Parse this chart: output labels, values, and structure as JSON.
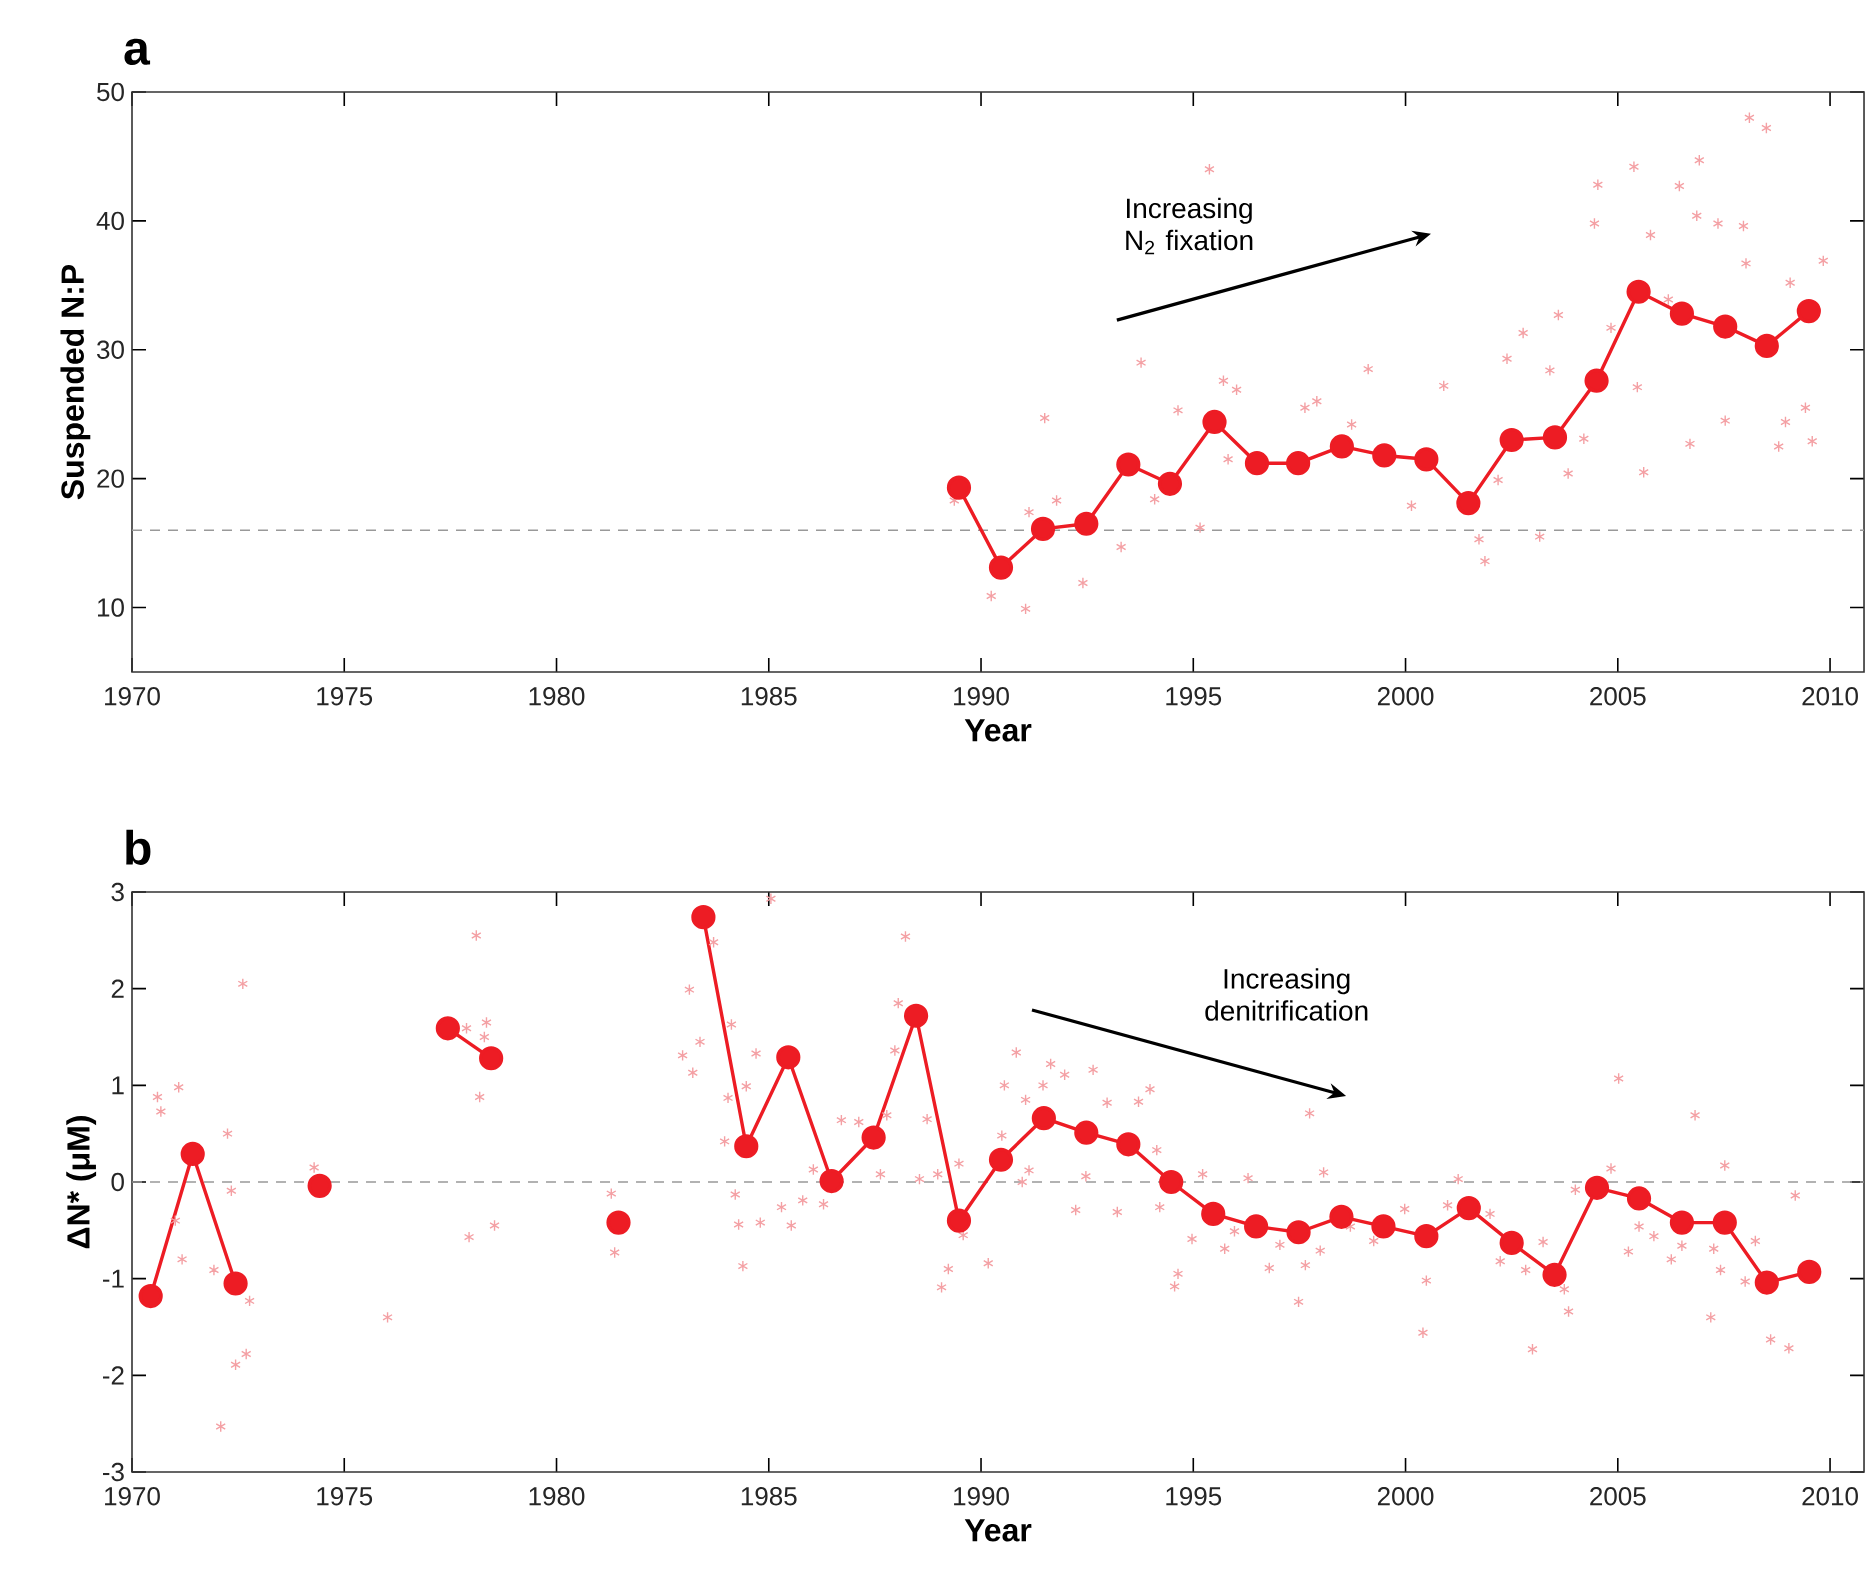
{
  "chart_data": [
    {
      "type": "line",
      "title": "a",
      "xlabel": "Year",
      "ylabel": "Suspended N:P",
      "xlim": [
        1970,
        2010.8
      ],
      "ylim": [
        5,
        50
      ],
      "xticks": [
        1970,
        1975,
        1980,
        1985,
        1990,
        1995,
        2000,
        2005,
        2010
      ],
      "yticks": [
        10,
        20,
        30,
        40,
        50
      ],
      "ref_lines": [
        {
          "axis": "y",
          "value": 16,
          "color": "#999999",
          "line_style": "dashed"
        }
      ],
      "annotations": [
        "Increasing N$_{2}$ fixation"
      ],
      "series": [
        {
          "type": "scatter",
          "color": "#f4a0a4",
          "marker": "cross",
          "x": [
            1995.38,
            1993.77,
            1991.5,
            1990.24,
            1991.05,
            1992.4,
            1993.3,
            1989.37,
            1991.13,
            1991.78,
            1994.09,
            1994.64,
            1995.16,
            1995.71,
            1996.02,
            1995.82,
            1997.63,
            1997.91,
            1999.12,
            1998.73,
            2000.14,
            2000.9,
            2001.87,
            2001.73,
            2002.18,
            2002.39,
            2002.77,
            2003.16,
            2003.6,
            2003.4,
            2003.83,
            2004.2,
            2004.45,
            2004.53,
            2004.84,
            2005.38,
            2005.46,
            2005.61,
            2005.77,
            2006.45,
            2006.92,
            2006.7,
            2006.86,
            2007.36,
            2007.53,
            2008.1,
            2008.5,
            2007.96,
            2008.79,
            2009.06,
            2008.95,
            2009.58,
            2009.84,
            2009.42,
            2006.19,
            2008.02
          ],
          "values": [
            44.0,
            29.0,
            24.7,
            10.9,
            9.9,
            11.9,
            14.7,
            18.3,
            17.4,
            18.3,
            18.4,
            25.3,
            16.2,
            27.6,
            26.9,
            21.5,
            25.5,
            26.0,
            28.5,
            24.2,
            17.9,
            27.2,
            13.6,
            15.3,
            19.9,
            29.3,
            31.3,
            15.5,
            32.7,
            28.4,
            20.4,
            23.1,
            39.8,
            42.8,
            31.7,
            44.2,
            27.1,
            20.5,
            38.9,
            42.7,
            44.7,
            22.7,
            40.4,
            39.8,
            24.5,
            48.0,
            47.2,
            39.6,
            22.5,
            35.2,
            24.4,
            22.9,
            36.9,
            25.5,
            33.9,
            36.7
          ]
        },
        {
          "color": "#ed1c24",
          "marker": "circle",
          "x": [
            1989.48,
            1990.47,
            1991.46,
            1992.48,
            1993.47,
            1994.45,
            1995.5,
            1996.5,
            1997.47,
            1998.5,
            1999.5,
            2000.49,
            2001.48,
            2002.5,
            2003.52,
            2004.5,
            2005.49,
            2006.51,
            2007.53,
            2008.51,
            2009.5
          ],
          "values": [
            19.3,
            13.1,
            16.1,
            16.5,
            21.1,
            19.6,
            24.4,
            21.2,
            21.2,
            22.5,
            21.8,
            21.5,
            18.1,
            23.0,
            23.2,
            27.6,
            34.5,
            32.8,
            31.8,
            30.3,
            33.0
          ]
        }
      ]
    },
    {
      "type": "line",
      "title": "b",
      "xlabel": "Year",
      "ylabel": "ΔN* (μM)",
      "xlim": [
        1970,
        2010.8
      ],
      "ylim": [
        -3,
        3
      ],
      "xticks": [
        1970,
        1975,
        1980,
        1985,
        1990,
        1995,
        2000,
        2005,
        2010
      ],
      "yticks": [
        -3,
        -2,
        -1,
        0,
        1,
        2,
        3
      ],
      "ref_lines": [
        {
          "axis": "y",
          "value": 0,
          "color": "#999999",
          "line_style": "dashed"
        }
      ],
      "annotations": [
        "Increasing denitrification"
      ],
      "series": [
        {
          "type": "scatter",
          "color": "#f4a0a4",
          "marker": "cross",
          "x": [
            1970.6,
            1970.68,
            1971.1,
            1971.18,
            1971.02,
            1972.09,
            1972.44,
            1972.69,
            1972.61,
            1972.25,
            1972.34,
            1971.93,
            1972.77,
            1974.29,
            1976.02,
            1978.11,
            1977.88,
            1978.35,
            1978.3,
            1978.19,
            1977.94,
            1978.54,
            1981.29,
            1981.37,
            1985.05,
            1983.13,
            1983.7,
            1983.38,
            1982.97,
            1983.21,
            1984.12,
            1984.04,
            1983.96,
            1984.47,
            1984.7,
            1984.21,
            1984.29,
            1984.39,
            1984.8,
            1985.3,
            1985.53,
            1985.8,
            1986.05,
            1986.29,
            1986.71,
            1987.12,
            1987.63,
            1987.78,
            1987.97,
            1988.05,
            1988.22,
            1988.73,
            1988.55,
            1988.98,
            1989.48,
            1989.58,
            1989.07,
            1989.23,
            1990.17,
            1990.49,
            1990.55,
            1990.83,
            1991.05,
            1990.97,
            1991.13,
            1991.64,
            1991.97,
            1992.64,
            1991.46,
            1992.23,
            1992.47,
            1992.97,
            1993.21,
            1993.71,
            1993.98,
            1994.14,
            1994.21,
            1994.56,
            1994.64,
            1994.97,
            1995.22,
            1995.74,
            1995.97,
            1996.29,
            1996.79,
            1997.04,
            1997.48,
            1997.64,
            1997.74,
            1998.07,
            1997.99,
            1998.7,
            1999.25,
            1999.98,
            2000.41,
            2000.49,
            2001.24,
            2000.99,
            2001.99,
            2002.23,
            2002.83,
            2002.99,
            2003.24,
            2003.74,
            2003.84,
            2004.0,
            2004.84,
            2005.02,
            2005.25,
            2005.5,
            2005.85,
            2006.26,
            2006.51,
            2006.82,
            2007.19,
            2007.26,
            2007.52,
            2007.42,
            2008.0,
            2008.24,
            2008.6,
            2009.03,
            2009.18
          ],
          "values": [
            0.88,
            0.73,
            0.98,
            -0.8,
            -0.4,
            -2.53,
            -1.89,
            -1.78,
            2.05,
            0.5,
            -0.09,
            -0.91,
            -1.23,
            0.15,
            -1.4,
            2.55,
            1.59,
            1.65,
            1.5,
            0.88,
            -0.57,
            -0.45,
            -0.12,
            -0.73,
            2.93,
            1.99,
            2.48,
            1.45,
            1.31,
            1.13,
            1.63,
            0.87,
            0.42,
            0.99,
            1.33,
            -0.13,
            -0.44,
            -0.87,
            -0.42,
            -0.26,
            -0.45,
            -0.19,
            0.13,
            -0.23,
            0.64,
            0.62,
            0.08,
            0.69,
            1.36,
            1.85,
            2.54,
            0.65,
            0.03,
            0.08,
            0.19,
            -0.55,
            -1.09,
            -0.9,
            -0.84,
            0.48,
            1.0,
            1.34,
            0.85,
            0.0,
            0.12,
            1.22,
            1.11,
            1.16,
            1.0,
            -0.29,
            0.06,
            0.82,
            -0.31,
            0.83,
            0.96,
            0.33,
            -0.26,
            -1.08,
            -0.95,
            -0.59,
            0.08,
            -0.69,
            -0.51,
            0.04,
            -0.89,
            -0.65,
            -1.24,
            -0.86,
            0.71,
            0.1,
            -0.71,
            -0.46,
            -0.61,
            -0.28,
            -1.56,
            -1.02,
            0.03,
            -0.24,
            -0.33,
            -0.82,
            -0.91,
            -1.73,
            -0.62,
            -1.11,
            -1.34,
            -0.08,
            0.14,
            1.07,
            -0.72,
            -0.46,
            -0.56,
            -0.8,
            -0.66,
            0.69,
            -1.4,
            -0.69,
            0.17,
            -0.91,
            -1.03,
            -0.61,
            -1.63,
            -1.72,
            -0.14
          ]
        },
        {
          "color": "#ed1c24",
          "marker": "circle",
          "x": [
            1970.44,
            1971.43,
            1972.44
          ],
          "values": [
            -1.18,
            0.29,
            -1.05
          ]
        },
        {
          "color": "#ed1c24",
          "marker": "circle",
          "x": [
            1974.42
          ],
          "values": [
            -0.04
          ]
        },
        {
          "color": "#ed1c24",
          "marker": "circle",
          "x": [
            1977.44,
            1978.46
          ],
          "values": [
            1.59,
            1.28
          ]
        },
        {
          "color": "#ed1c24",
          "marker": "circle",
          "x": [
            1981.46
          ],
          "values": [
            -0.42
          ]
        },
        {
          "color": "#ed1c24",
          "marker": "circle",
          "x": [
            1983.46,
            1984.47,
            1985.46,
            1986.48,
            1987.47,
            1988.47,
            1989.48,
            1990.47,
            1991.48,
            1992.48,
            1993.47,
            1994.48,
            1995.47,
            1996.48,
            1997.48,
            1998.49,
            1999.48,
            2000.49,
            2001.49,
            2002.5,
            2003.51,
            2004.51,
            2005.5,
            2006.51,
            2007.52,
            2008.51,
            2009.51
          ],
          "values": [
            2.74,
            0.37,
            1.29,
            0.01,
            0.46,
            1.72,
            -0.4,
            0.23,
            0.66,
            0.51,
            0.39,
            0.0,
            -0.33,
            -0.46,
            -0.52,
            -0.36,
            -0.46,
            -0.56,
            -0.27,
            -0.63,
            -0.96,
            -0.06,
            -0.17,
            -0.42,
            -0.42,
            -1.04,
            -0.93
          ]
        }
      ]
    }
  ]
}
